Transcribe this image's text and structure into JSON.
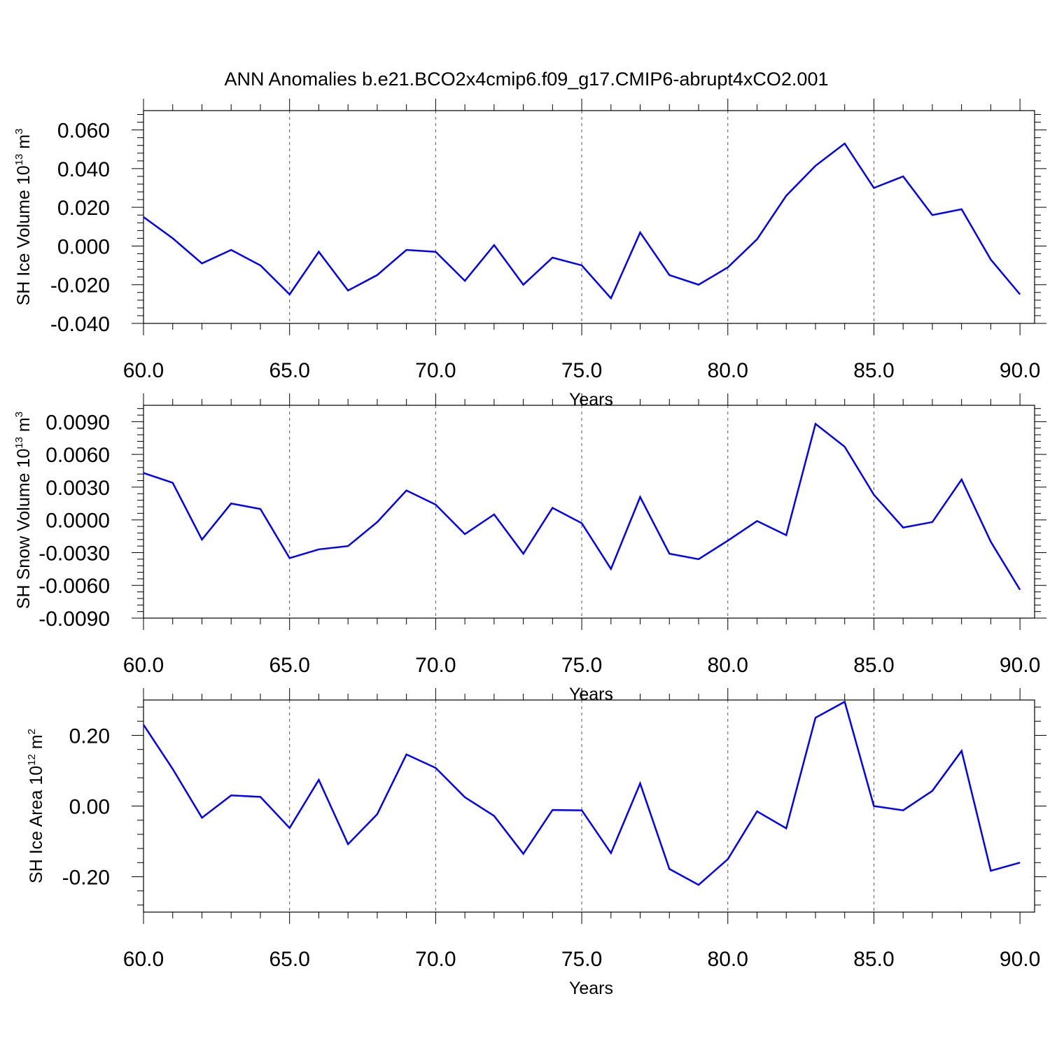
{
  "title": "ANN Anomalies b.e21.BCO2x4cmip6.f09_g17.CMIP6-abrupt4xCO2.001",
  "series_color": "#0000ff",
  "chart_data": [
    {
      "type": "line",
      "ylabel": {
        "text": "SH Ice Volume 10",
        "sup": "13",
        "unit": " m",
        "unit_sup": "3"
      },
      "xlabel": "Years",
      "xlim": [
        60,
        90.5
      ],
      "ylim": [
        -0.04,
        0.07
      ],
      "xticks": [
        60,
        65,
        70,
        75,
        80,
        85,
        90
      ],
      "xtick_labels": [
        "60.0",
        "65.0",
        "70.0",
        "75.0",
        "80.0",
        "85.0",
        "90.0"
      ],
      "yticks": [
        -0.04,
        -0.02,
        0.0,
        0.02,
        0.04,
        0.06
      ],
      "ytick_labels": [
        "-0.040",
        "-0.020",
        "0.000",
        "0.020",
        "0.040",
        "0.060"
      ],
      "x": [
        60,
        61,
        62,
        63,
        64,
        65,
        66,
        67,
        68,
        69,
        70,
        71,
        72,
        73,
        74,
        75,
        76,
        77,
        78,
        79,
        80,
        81,
        82,
        83,
        84,
        85,
        86,
        87,
        88,
        89,
        90
      ],
      "values": [
        0.015,
        0.004,
        -0.009,
        -0.002,
        -0.01,
        -0.025,
        -0.003,
        -0.023,
        -0.015,
        -0.002,
        -0.003,
        -0.018,
        0.0005,
        -0.02,
        -0.006,
        -0.01,
        -0.027,
        0.007,
        -0.015,
        -0.02,
        -0.011,
        0.0035,
        0.026,
        0.0415,
        0.053,
        0.03,
        0.036,
        0.016,
        0.019,
        -0.007,
        -0.025
      ]
    },
    {
      "type": "line",
      "ylabel": {
        "text": "SH Snow Volume 10",
        "sup": "13",
        "unit": " m",
        "unit_sup": "3"
      },
      "xlabel": "Years",
      "xlim": [
        60,
        90.5
      ],
      "ylim": [
        -0.009,
        0.0105
      ],
      "xticks": [
        60,
        65,
        70,
        75,
        80,
        85,
        90
      ],
      "xtick_labels": [
        "60.0",
        "65.0",
        "70.0",
        "75.0",
        "80.0",
        "85.0",
        "90.0"
      ],
      "yticks": [
        -0.009,
        -0.006,
        -0.003,
        0.0,
        0.003,
        0.006,
        0.009
      ],
      "ytick_labels": [
        "-0.0090",
        "-0.0060",
        "-0.0030",
        "0.0000",
        "0.0030",
        "0.0060",
        "0.0090"
      ],
      "x": [
        60,
        61,
        62,
        63,
        64,
        65,
        66,
        67,
        68,
        69,
        70,
        71,
        72,
        73,
        74,
        75,
        76,
        77,
        78,
        79,
        80,
        81,
        82,
        83,
        84,
        85,
        86,
        87,
        88,
        89,
        90
      ],
      "values": [
        0.0043,
        0.0034,
        -0.0018,
        0.0015,
        0.001,
        -0.0035,
        -0.0027,
        -0.0024,
        -0.0002,
        0.0027,
        0.0014,
        -0.0013,
        0.0005,
        -0.0031,
        0.0011,
        -0.0003,
        -0.0045,
        0.0021,
        -0.0031,
        -0.0036,
        -0.0019,
        -0.0001,
        -0.0014,
        0.0088,
        0.0067,
        0.0023,
        -0.0007,
        -0.0002,
        0.0037,
        -0.002,
        -0.0064
      ]
    },
    {
      "type": "line",
      "ylabel": {
        "text": "SH Ice Area 10",
        "sup": "12",
        "unit": " m",
        "unit_sup": "2"
      },
      "xlabel": "Years",
      "xlim": [
        60,
        90.5
      ],
      "ylim": [
        -0.3,
        0.3
      ],
      "xticks": [
        60,
        65,
        70,
        75,
        80,
        85,
        90
      ],
      "xtick_labels": [
        "60.0",
        "65.0",
        "70.0",
        "75.0",
        "80.0",
        "85.0",
        "90.0"
      ],
      "yticks": [
        -0.2,
        0.0,
        0.2
      ],
      "ytick_labels": [
        "-0.20",
        "0.00",
        "0.20"
      ],
      "x": [
        60,
        61,
        62,
        63,
        64,
        65,
        66,
        67,
        68,
        69,
        70,
        71,
        72,
        73,
        74,
        75,
        76,
        77,
        78,
        79,
        80,
        81,
        82,
        83,
        84,
        85,
        86,
        87,
        88,
        89,
        90
      ],
      "values": [
        0.23,
        0.105,
        -0.033,
        0.03,
        0.026,
        -0.062,
        0.074,
        -0.108,
        -0.023,
        0.146,
        0.108,
        0.025,
        -0.028,
        -0.135,
        -0.011,
        -0.012,
        -0.133,
        0.064,
        -0.178,
        -0.223,
        -0.15,
        -0.015,
        -0.063,
        0.25,
        0.295,
        0.0,
        -0.012,
        0.043,
        0.156,
        -0.183,
        -0.16
      ]
    }
  ]
}
